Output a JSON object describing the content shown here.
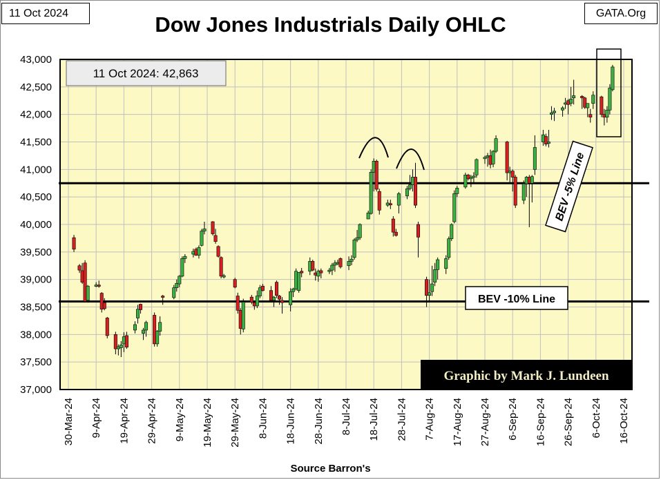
{
  "header": {
    "date_label": "11 Oct 2024",
    "site_label": "GATA.Org",
    "title": "Dow Jones Industrials Daily OHLC"
  },
  "footer": {
    "source": "Source Barron's"
  },
  "colors": {
    "plot_bg": "#fdf9c4",
    "grid": "#bfbfbf",
    "up": "#3cb043",
    "down": "#d42020",
    "credit_bg": "#000000",
    "credit_text": "#f3edc6"
  },
  "chart_data": {
    "type": "ohlc",
    "title": "Dow Jones Industrials Daily OHLC",
    "ylim": [
      37000,
      43000
    ],
    "yticks": [
      37000,
      37500,
      38000,
      38500,
      39000,
      39500,
      40000,
      40500,
      41000,
      41500,
      42000,
      42500,
      43000
    ],
    "ytick_labels": [
      "37,000",
      "37,500",
      "38,000",
      "38,500",
      "39,000",
      "39,500",
      "40,000",
      "40,500",
      "41,000",
      "41,500",
      "42,000",
      "42,500",
      "43,000"
    ],
    "xticks": [
      "30-Mar-24",
      "9-Apr-24",
      "19-Apr-24",
      "29-Apr-24",
      "9-May-24",
      "19-May-24",
      "29-May-24",
      "8-Jun-24",
      "18-Jun-24",
      "28-Jun-24",
      "8-Jul-24",
      "18-Jul-24",
      "28-Jul-24",
      "7-Aug-24",
      "17-Aug-24",
      "27-Aug-24",
      "6-Sep-24",
      "16-Sep-24",
      "26-Sep-24",
      "6-Oct-24",
      "16-Oct-24"
    ],
    "x_days_total": 200,
    "grid": true,
    "reference_lines": [
      {
        "label": "BEV -5% Line",
        "value": 40750
      },
      {
        "label": "BEV -10% Line",
        "value": 38600
      }
    ],
    "annotations": {
      "last_value": "11 Oct 2024:  42,863",
      "credit": "Graphic by Mark J. Lundeen"
    },
    "series": [
      {
        "d": 2,
        "o": 39760,
        "h": 39810,
        "l": 39500,
        "c": 39550
      },
      {
        "d": 4,
        "o": 39250,
        "h": 39280,
        "l": 39120,
        "c": 39170
      },
      {
        "d": 5,
        "o": 39160,
        "h": 39300,
        "l": 38920,
        "c": 38950
      },
      {
        "d": 6,
        "o": 39300,
        "h": 39350,
        "l": 38580,
        "c": 38600
      },
      {
        "d": 7,
        "o": 38620,
        "h": 38900,
        "l": 38580,
        "c": 38880
      },
      {
        "d": 10,
        "o": 38880,
        "h": 38950,
        "l": 38860,
        "c": 38900
      },
      {
        "d": 11,
        "o": 38900,
        "h": 38980,
        "l": 38850,
        "c": 38880
      },
      {
        "d": 12,
        "o": 38750,
        "h": 38770,
        "l": 38400,
        "c": 38460
      },
      {
        "d": 13,
        "o": 38580,
        "h": 38660,
        "l": 38440,
        "c": 38470
      },
      {
        "d": 14,
        "o": 38300,
        "h": 38320,
        "l": 37930,
        "c": 37980
      },
      {
        "d": 17,
        "o": 38000,
        "h": 38050,
        "l": 37640,
        "c": 37740
      },
      {
        "d": 18,
        "o": 37740,
        "h": 37820,
        "l": 37620,
        "c": 37780
      },
      {
        "d": 19,
        "o": 37760,
        "h": 37880,
        "l": 37590,
        "c": 37810
      },
      {
        "d": 20,
        "o": 37830,
        "h": 38040,
        "l": 37680,
        "c": 37960
      },
      {
        "d": 21,
        "o": 37980,
        "h": 38050,
        "l": 37740,
        "c": 37770
      },
      {
        "d": 24,
        "o": 38080,
        "h": 38240,
        "l": 38020,
        "c": 38180
      },
      {
        "d": 25,
        "o": 38300,
        "h": 38540,
        "l": 38200,
        "c": 38460
      },
      {
        "d": 26,
        "o": 38550,
        "h": 38560,
        "l": 38380,
        "c": 38450
      },
      {
        "d": 27,
        "o": 38020,
        "h": 38120,
        "l": 37900,
        "c": 38080
      },
      {
        "d": 28,
        "o": 38080,
        "h": 38250,
        "l": 37960,
        "c": 38220
      },
      {
        "d": 31,
        "o": 38350,
        "h": 38400,
        "l": 37780,
        "c": 37830
      },
      {
        "d": 32,
        "o": 37830,
        "h": 38080,
        "l": 37780,
        "c": 38060
      },
      {
        "d": 33,
        "o": 38060,
        "h": 38330,
        "l": 37980,
        "c": 38220
      },
      {
        "d": 34,
        "o": 38700,
        "h": 38720,
        "l": 38540,
        "c": 38680
      },
      {
        "d": 38,
        "o": 38670,
        "h": 38900,
        "l": 38640,
        "c": 38850
      },
      {
        "d": 39,
        "o": 38850,
        "h": 39000,
        "l": 38780,
        "c": 38930
      },
      {
        "d": 40,
        "o": 38920,
        "h": 39080,
        "l": 38860,
        "c": 39060
      },
      {
        "d": 41,
        "o": 39060,
        "h": 39420,
        "l": 39040,
        "c": 39380
      },
      {
        "d": 42,
        "o": 39380,
        "h": 39460,
        "l": 39300,
        "c": 39420
      },
      {
        "d": 45,
        "o": 39460,
        "h": 39560,
        "l": 39400,
        "c": 39510
      },
      {
        "d": 46,
        "o": 39550,
        "h": 39580,
        "l": 39430,
        "c": 39440
      },
      {
        "d": 47,
        "o": 39440,
        "h": 39620,
        "l": 39380,
        "c": 39580
      },
      {
        "d": 48,
        "o": 39620,
        "h": 39920,
        "l": 39600,
        "c": 39880
      },
      {
        "d": 49,
        "o": 39880,
        "h": 40050,
        "l": 39820,
        "c": 39920
      },
      {
        "d": 52,
        "o": 40050,
        "h": 40060,
        "l": 39800,
        "c": 39830
      },
      {
        "d": 53,
        "o": 39800,
        "h": 39920,
        "l": 39650,
        "c": 39690
      },
      {
        "d": 54,
        "o": 39600,
        "h": 39620,
        "l": 39400,
        "c": 39420
      },
      {
        "d": 55,
        "o": 39400,
        "h": 39420,
        "l": 39020,
        "c": 39060
      },
      {
        "d": 56,
        "o": 39060,
        "h": 39100,
        "l": 39020,
        "c": 39070
      },
      {
        "d": 60,
        "o": 39000,
        "h": 39030,
        "l": 38840,
        "c": 38860
      },
      {
        "d": 61,
        "o": 38700,
        "h": 38760,
        "l": 38380,
        "c": 38440
      },
      {
        "d": 62,
        "o": 38440,
        "h": 38480,
        "l": 38000,
        "c": 38110
      },
      {
        "d": 63,
        "o": 38100,
        "h": 38650,
        "l": 38040,
        "c": 38590
      },
      {
        "d": 66,
        "o": 38680,
        "h": 38720,
        "l": 38550,
        "c": 38590
      },
      {
        "d": 67,
        "o": 38580,
        "h": 38620,
        "l": 38450,
        "c": 38520
      },
      {
        "d": 68,
        "o": 38520,
        "h": 38800,
        "l": 38480,
        "c": 38700
      },
      {
        "d": 69,
        "o": 38700,
        "h": 38900,
        "l": 38660,
        "c": 38850
      },
      {
        "d": 70,
        "o": 38880,
        "h": 38920,
        "l": 38780,
        "c": 38800
      },
      {
        "d": 73,
        "o": 38800,
        "h": 38880,
        "l": 38580,
        "c": 38620
      },
      {
        "d": 74,
        "o": 38620,
        "h": 38700,
        "l": 38500,
        "c": 38680
      },
      {
        "d": 75,
        "o": 38950,
        "h": 38980,
        "l": 38660,
        "c": 38710
      },
      {
        "d": 76,
        "o": 38700,
        "h": 38720,
        "l": 38540,
        "c": 38640
      },
      {
        "d": 77,
        "o": 38620,
        "h": 38680,
        "l": 38380,
        "c": 38580
      },
      {
        "d": 80,
        "o": 38540,
        "h": 38840,
        "l": 38420,
        "c": 38780
      },
      {
        "d": 81,
        "o": 38780,
        "h": 38850,
        "l": 38680,
        "c": 38830
      },
      {
        "d": 82,
        "o": 38830,
        "h": 39200,
        "l": 38800,
        "c": 39150
      },
      {
        "d": 83,
        "o": 38800,
        "h": 39080,
        "l": 38760,
        "c": 39130
      },
      {
        "d": 84,
        "o": 39150,
        "h": 39210,
        "l": 39040,
        "c": 39120
      },
      {
        "d": 87,
        "o": 39150,
        "h": 39400,
        "l": 39080,
        "c": 39330
      },
      {
        "d": 88,
        "o": 39330,
        "h": 39360,
        "l": 39150,
        "c": 39170
      },
      {
        "d": 89,
        "o": 39120,
        "h": 39200,
        "l": 38980,
        "c": 39080
      },
      {
        "d": 90,
        "o": 39060,
        "h": 39180,
        "l": 38960,
        "c": 39150
      },
      {
        "d": 91,
        "o": 39160,
        "h": 39200,
        "l": 39020,
        "c": 39120
      },
      {
        "d": 94,
        "o": 39150,
        "h": 39210,
        "l": 39100,
        "c": 39170
      },
      {
        "d": 95,
        "o": 39170,
        "h": 39300,
        "l": 39080,
        "c": 39260
      },
      {
        "d": 96,
        "o": 39260,
        "h": 39350,
        "l": 39140,
        "c": 39300
      },
      {
        "d": 97,
        "o": 39300,
        "h": 39360,
        "l": 39260,
        "c": 39310
      },
      {
        "d": 98,
        "o": 39380,
        "h": 39400,
        "l": 39200,
        "c": 39230
      },
      {
        "d": 101,
        "o": 39250,
        "h": 39420,
        "l": 39170,
        "c": 39330
      },
      {
        "d": 102,
        "o": 39330,
        "h": 39440,
        "l": 39260,
        "c": 39370
      },
      {
        "d": 103,
        "o": 39400,
        "h": 39750,
        "l": 39360,
        "c": 39720
      },
      {
        "d": 104,
        "o": 39720,
        "h": 39900,
        "l": 39680,
        "c": 39760
      },
      {
        "d": 105,
        "o": 39760,
        "h": 40020,
        "l": 39720,
        "c": 40000
      },
      {
        "d": 108,
        "o": 40100,
        "h": 40250,
        "l": 40150,
        "c": 40210
      },
      {
        "d": 109,
        "o": 40200,
        "h": 41000,
        "l": 40180,
        "c": 40950
      },
      {
        "d": 110,
        "o": 40950,
        "h": 41200,
        "l": 40600,
        "c": 41150
      },
      {
        "d": 111,
        "o": 41150,
        "h": 41180,
        "l": 40600,
        "c": 40640
      },
      {
        "d": 112,
        "o": 40600,
        "h": 40650,
        "l": 40180,
        "c": 40260
      },
      {
        "d": 115,
        "o": 40350,
        "h": 40450,
        "l": 40320,
        "c": 40390
      },
      {
        "d": 116,
        "o": 40380,
        "h": 40450,
        "l": 40280,
        "c": 40360
      },
      {
        "d": 117,
        "o": 40100,
        "h": 40150,
        "l": 39780,
        "c": 39860
      },
      {
        "d": 118,
        "o": 39860,
        "h": 39920,
        "l": 39780,
        "c": 39800
      },
      {
        "d": 119,
        "o": 40350,
        "h": 40590,
        "l": 40200,
        "c": 40560
      },
      {
        "d": 122,
        "o": 40520,
        "h": 40700,
        "l": 40460,
        "c": 40650
      },
      {
        "d": 123,
        "o": 40650,
        "h": 40900,
        "l": 40620,
        "c": 40720
      },
      {
        "d": 124,
        "o": 40720,
        "h": 41000,
        "l": 40600,
        "c": 40860
      },
      {
        "d": 125,
        "o": 40860,
        "h": 41120,
        "l": 40300,
        "c": 40350
      },
      {
        "d": 126,
        "o": 40000,
        "h": 40050,
        "l": 39400,
        "c": 39770
      },
      {
        "d": 129,
        "o": 39000,
        "h": 39050,
        "l": 38500,
        "c": 38710
      },
      {
        "d": 130,
        "o": 38710,
        "h": 39000,
        "l": 38600,
        "c": 38760
      },
      {
        "d": 131,
        "o": 38780,
        "h": 39250,
        "l": 38700,
        "c": 38920
      },
      {
        "d": 132,
        "o": 38950,
        "h": 39300,
        "l": 38880,
        "c": 39180
      },
      {
        "d": 133,
        "o": 39180,
        "h": 39400,
        "l": 39000,
        "c": 39360
      },
      {
        "d": 136,
        "o": 39200,
        "h": 39440,
        "l": 39100,
        "c": 39380
      },
      {
        "d": 137,
        "o": 39400,
        "h": 39780,
        "l": 39360,
        "c": 39740
      },
      {
        "d": 138,
        "o": 39740,
        "h": 40020,
        "l": 39700,
        "c": 40000
      },
      {
        "d": 139,
        "o": 40050,
        "h": 40620,
        "l": 40020,
        "c": 40560
      },
      {
        "d": 140,
        "o": 40560,
        "h": 40700,
        "l": 40500,
        "c": 40660
      },
      {
        "d": 143,
        "o": 40680,
        "h": 40940,
        "l": 40650,
        "c": 40900
      },
      {
        "d": 144,
        "o": 40900,
        "h": 40920,
        "l": 40800,
        "c": 40830
      },
      {
        "d": 145,
        "o": 40830,
        "h": 40900,
        "l": 40680,
        "c": 40860
      },
      {
        "d": 146,
        "o": 40860,
        "h": 40950,
        "l": 40740,
        "c": 40880
      },
      {
        "d": 147,
        "o": 40900,
        "h": 41200,
        "l": 40850,
        "c": 41180
      },
      {
        "d": 150,
        "o": 41200,
        "h": 41250,
        "l": 41100,
        "c": 41220
      },
      {
        "d": 151,
        "o": 41220,
        "h": 41300,
        "l": 41050,
        "c": 41250
      },
      {
        "d": 152,
        "o": 41250,
        "h": 41360,
        "l": 41020,
        "c": 41090
      },
      {
        "d": 153,
        "o": 41100,
        "h": 41350,
        "l": 41040,
        "c": 41330
      },
      {
        "d": 154,
        "o": 41330,
        "h": 41620,
        "l": 41300,
        "c": 41560
      },
      {
        "d": 158,
        "o": 41500,
        "h": 41520,
        "l": 40800,
        "c": 40940
      },
      {
        "d": 159,
        "o": 40940,
        "h": 41050,
        "l": 40760,
        "c": 40970
      },
      {
        "d": 160,
        "o": 40970,
        "h": 41000,
        "l": 40600,
        "c": 40860
      },
      {
        "d": 161,
        "o": 40860,
        "h": 40900,
        "l": 40300,
        "c": 40350
      },
      {
        "d": 164,
        "o": 40440,
        "h": 40800,
        "l": 40370,
        "c": 40740
      },
      {
        "d": 165,
        "o": 40740,
        "h": 40880,
        "l": 40500,
        "c": 40860
      },
      {
        "d": 166,
        "o": 40860,
        "h": 40900,
        "l": 39950,
        "c": 40750
      },
      {
        "d": 167,
        "o": 40750,
        "h": 40900,
        "l": 40400,
        "c": 40870
      },
      {
        "d": 168,
        "o": 41000,
        "h": 41620,
        "l": 40900,
        "c": 41400
      },
      {
        "d": 171,
        "o": 41500,
        "h": 41720,
        "l": 41430,
        "c": 41630
      },
      {
        "d": 172,
        "o": 41600,
        "h": 41650,
        "l": 41420,
        "c": 41460
      },
      {
        "d": 173,
        "o": 41500,
        "h": 41720,
        "l": 41400,
        "c": 41500
      },
      {
        "d": 174,
        "o": 42000,
        "h": 42150,
        "l": 41900,
        "c": 42030
      },
      {
        "d": 175,
        "o": 42030,
        "h": 42120,
        "l": 41880,
        "c": 42060
      },
      {
        "d": 178,
        "o": 42080,
        "h": 42150,
        "l": 41960,
        "c": 42120
      },
      {
        "d": 179,
        "o": 42200,
        "h": 42300,
        "l": 42100,
        "c": 42210
      },
      {
        "d": 180,
        "o": 42250,
        "h": 42280,
        "l": 42000,
        "c": 42180
      },
      {
        "d": 181,
        "o": 42200,
        "h": 42500,
        "l": 42150,
        "c": 42280
      },
      {
        "d": 182,
        "o": 42300,
        "h": 42630,
        "l": 42180,
        "c": 42340
      },
      {
        "d": 185,
        "o": 42330,
        "h": 42350,
        "l": 42100,
        "c": 42300
      },
      {
        "d": 186,
        "o": 42300,
        "h": 42320,
        "l": 42100,
        "c": 42130
      },
      {
        "d": 187,
        "o": 42120,
        "h": 42200,
        "l": 41950,
        "c": 42200
      },
      {
        "d": 188,
        "o": 42000,
        "h": 42100,
        "l": 41850,
        "c": 41950
      },
      {
        "d": 189,
        "o": 42200,
        "h": 42420,
        "l": 42100,
        "c": 42350
      },
      {
        "d": 192,
        "o": 42320,
        "h": 42340,
        "l": 41950,
        "c": 42000
      },
      {
        "d": 193,
        "o": 42000,
        "h": 42100,
        "l": 41800,
        "c": 41950
      },
      {
        "d": 194,
        "o": 41950,
        "h": 42150,
        "l": 41850,
        "c": 42080
      },
      {
        "d": 195,
        "o": 42080,
        "h": 42550,
        "l": 42000,
        "c": 42480
      },
      {
        "d": 196,
        "o": 42450,
        "h": 42900,
        "l": 42420,
        "c": 42863
      }
    ]
  }
}
